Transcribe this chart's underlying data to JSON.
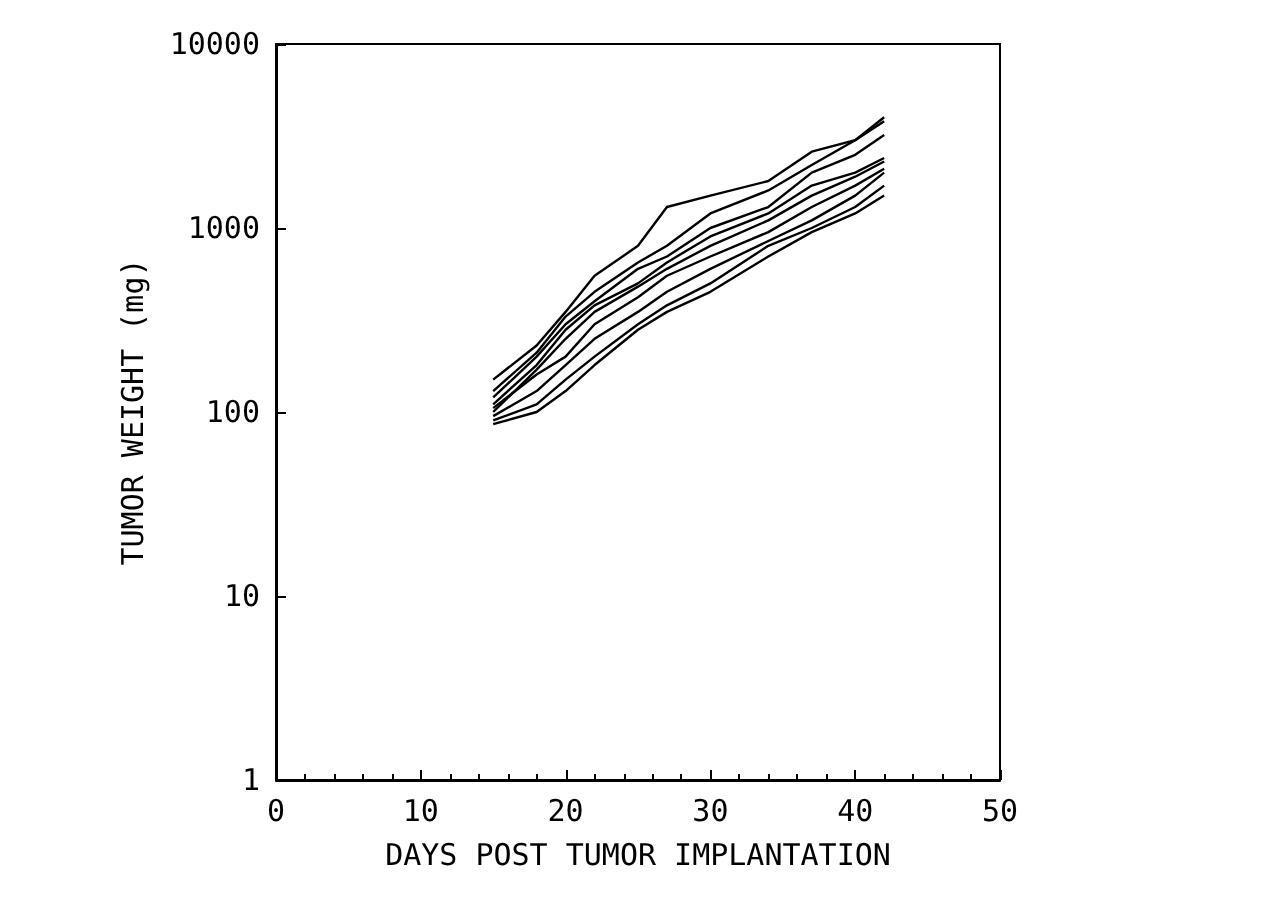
{
  "chart_data": {
    "type": "line",
    "xlabel": "DAYS POST TUMOR IMPLANTATION",
    "ylabel": "TUMOR WEIGHT (mg)",
    "log": "y",
    "grid": false,
    "marker": "none",
    "line_style": "solid",
    "x": [
      15,
      18,
      20,
      22,
      25,
      27,
      30,
      34,
      37,
      40,
      42
    ],
    "xlim": [
      0,
      50
    ],
    "xticks": [
      0,
      10,
      20,
      30,
      40,
      50
    ],
    "ylim": [
      1,
      10000
    ],
    "yticks": [
      1,
      10,
      100,
      1000,
      10000
    ],
    "series": [
      {
        "color": "#000000",
        "values": [
          150,
          230,
          350,
          550,
          800,
          1300,
          1500,
          1800,
          2600,
          3000,
          4000
        ]
      },
      {
        "color": "#000000",
        "values": [
          130,
          210,
          330,
          450,
          650,
          800,
          1200,
          1600,
          2200,
          3000,
          3800
        ]
      },
      {
        "color": "#000000",
        "values": [
          120,
          200,
          300,
          400,
          600,
          700,
          1000,
          1300,
          2000,
          2500,
          3200
        ]
      },
      {
        "color": "#000000",
        "values": [
          110,
          180,
          280,
          380,
          500,
          650,
          900,
          1200,
          1700,
          2000,
          2400
        ]
      },
      {
        "color": "#000000",
        "values": [
          100,
          170,
          250,
          350,
          480,
          600,
          800,
          1100,
          1500,
          1900,
          2300
        ]
      },
      {
        "color": "#000000",
        "values": [
          105,
          160,
          200,
          300,
          420,
          550,
          700,
          950,
          1300,
          1700,
          2100
        ]
      },
      {
        "color": "#000000",
        "values": [
          95,
          130,
          180,
          250,
          350,
          450,
          600,
          850,
          1100,
          1500,
          2000
        ]
      },
      {
        "color": "#000000",
        "values": [
          90,
          110,
          150,
          200,
          300,
          380,
          500,
          800,
          1000,
          1300,
          1700
        ]
      },
      {
        "color": "#000000",
        "values": [
          86,
          100,
          130,
          180,
          280,
          350,
          450,
          700,
          950,
          1200,
          1500
        ]
      }
    ]
  }
}
